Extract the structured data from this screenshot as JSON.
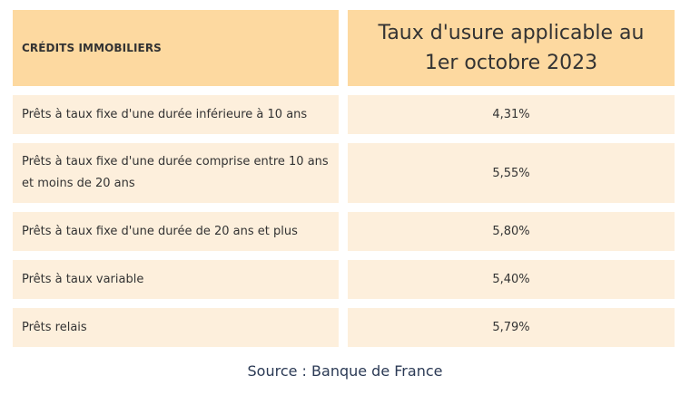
{
  "table": {
    "header": {
      "left": "CRÉDITS IMMOBILIERS",
      "right_line1": "Taux d'usure applicable au",
      "right_line2": "1er octobre 2023"
    },
    "rows": [
      {
        "label": "Prêts à taux fixe d'une durée inférieure à 10 ans",
        "value": "4,31%"
      },
      {
        "label": "Prêts à taux fixe d'une durée comprise entre 10 ans et moins de 20 ans",
        "value": "5,55%"
      },
      {
        "label": "Prêts à taux fixe d'une durée de 20 ans et plus",
        "value": "5,80%"
      },
      {
        "label": "Prêts à taux variable",
        "value": "5,40%"
      },
      {
        "label": "Prêts relais",
        "value": "5,79%"
      }
    ]
  },
  "source": "Source : Banque de France"
}
